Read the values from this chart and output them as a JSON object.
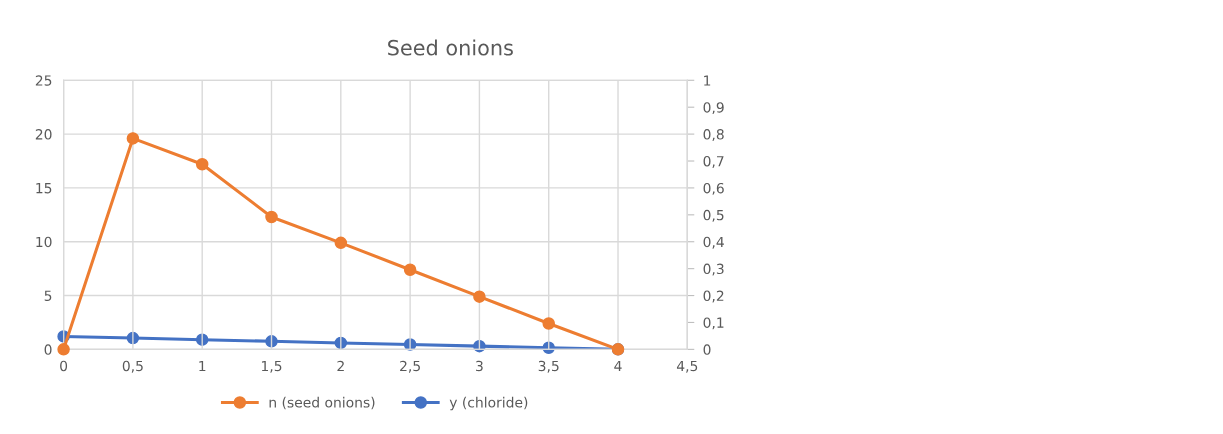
{
  "chart_data": {
    "type": "line",
    "title": "Seed onions",
    "x": [
      0,
      0.5,
      1,
      1.5,
      2,
      2.5,
      3,
      3.5,
      4
    ],
    "series": [
      {
        "name": "n (seed onions)",
        "color": "#ed7d31",
        "values": [
          0,
          19.6,
          17.2,
          12.3,
          9.9,
          7.4,
          4.9,
          2.4,
          0
        ]
      },
      {
        "name": "y (chloride)",
        "color": "#4472c4",
        "axis": "y2",
        "values": [
          0.048,
          0.042,
          0.036,
          0.03,
          0.024,
          0.018,
          0.012,
          0.006,
          0
        ]
      }
    ],
    "xlim": [
      0,
      4.5
    ],
    "xticks": [
      0,
      {
        "value": 0.5,
        "label": "0,5"
      },
      1,
      {
        "value": 1.5,
        "label": "1,5"
      },
      2,
      {
        "value": 2.5,
        "label": "2,5"
      },
      3,
      {
        "value": 3.5,
        "label": "3,5"
      },
      4,
      {
        "value": 4.5,
        "label": "4,5"
      }
    ],
    "ylim": [
      0,
      25
    ],
    "yticks": [
      0,
      5,
      10,
      15,
      20,
      25
    ],
    "y2lim": [
      0,
      1
    ],
    "y2ticks": [
      0,
      {
        "value": 0.1,
        "label": "0,1"
      },
      {
        "value": 0.2,
        "label": "0,2"
      },
      {
        "value": 0.3,
        "label": "0,3"
      },
      {
        "value": 0.4,
        "label": "0,4"
      },
      {
        "value": 0.5,
        "label": "0,5"
      },
      {
        "value": 0.6,
        "label": "0,6"
      },
      {
        "value": 0.7,
        "label": "0,7"
      },
      {
        "value": 0.8,
        "label": "0,8"
      },
      {
        "value": 0.9,
        "label": "0,9"
      },
      1
    ],
    "grid": true,
    "legend": "bottom",
    "marker": "circle",
    "line_style": "solid"
  }
}
